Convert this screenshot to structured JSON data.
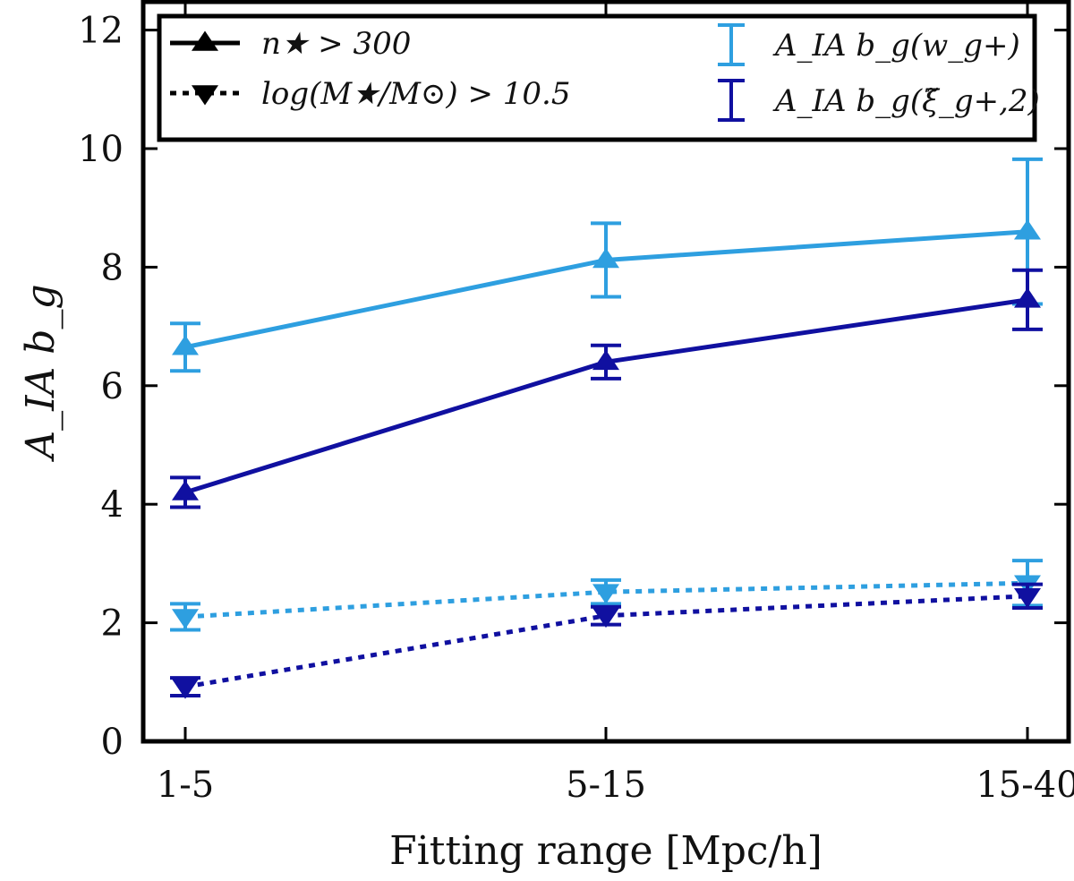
{
  "chart_data": {
    "type": "line",
    "title": "",
    "xlabel": "Fitting range [Mpc/h]",
    "ylabel": "A_IA b_g",
    "categories": [
      "1-5",
      "5-15",
      "15-40"
    ],
    "ylim": [
      0,
      12.5
    ],
    "yticks": [
      0,
      2,
      4,
      6,
      8,
      10,
      12
    ],
    "grid": false,
    "legend_position": "top",
    "colors": {
      "light": "#2e9fe0",
      "dark": "#1010a0"
    },
    "series": [
      {
        "name": "A_IA b_g(w_g+), n★ > 300",
        "color_key": "light",
        "linestyle": "solid",
        "marker": "triangle-up",
        "values": [
          6.65,
          8.12,
          8.6
        ],
        "yerr": [
          0.4,
          0.62,
          1.22
        ]
      },
      {
        "name": "A_IA b_g(ξ̃_g+,2), n★ > 300",
        "color_key": "dark",
        "linestyle": "solid",
        "marker": "triangle-up",
        "values": [
          4.2,
          6.4,
          7.45
        ],
        "yerr": [
          0.25,
          0.28,
          0.5
        ]
      },
      {
        "name": "A_IA b_g(w_g+), log(M★/M⊙) > 10.5",
        "color_key": "light",
        "linestyle": "dotted",
        "marker": "triangle-down",
        "values": [
          2.1,
          2.52,
          2.67
        ],
        "yerr": [
          0.22,
          0.2,
          0.38
        ]
      },
      {
        "name": "A_IA b_g(ξ̃_g+,2), log(M★/M⊙) > 10.5",
        "color_key": "dark",
        "linestyle": "dotted",
        "marker": "triangle-down",
        "values": [
          0.92,
          2.12,
          2.45
        ],
        "yerr": [
          0.15,
          0.15,
          0.2
        ]
      }
    ],
    "legend": {
      "style_entries": [
        {
          "label": "n★ > 300",
          "linestyle": "solid",
          "marker": "triangle-up"
        },
        {
          "label": "log(M★/M⊙) > 10.5",
          "linestyle": "dotted",
          "marker": "triangle-down"
        }
      ],
      "color_entries": [
        {
          "label": "A_IA b_g(w_g+)",
          "color_key": "light"
        },
        {
          "label": "A_IA b_g(ξ̃_g+,2)",
          "color_key": "dark"
        }
      ]
    }
  }
}
